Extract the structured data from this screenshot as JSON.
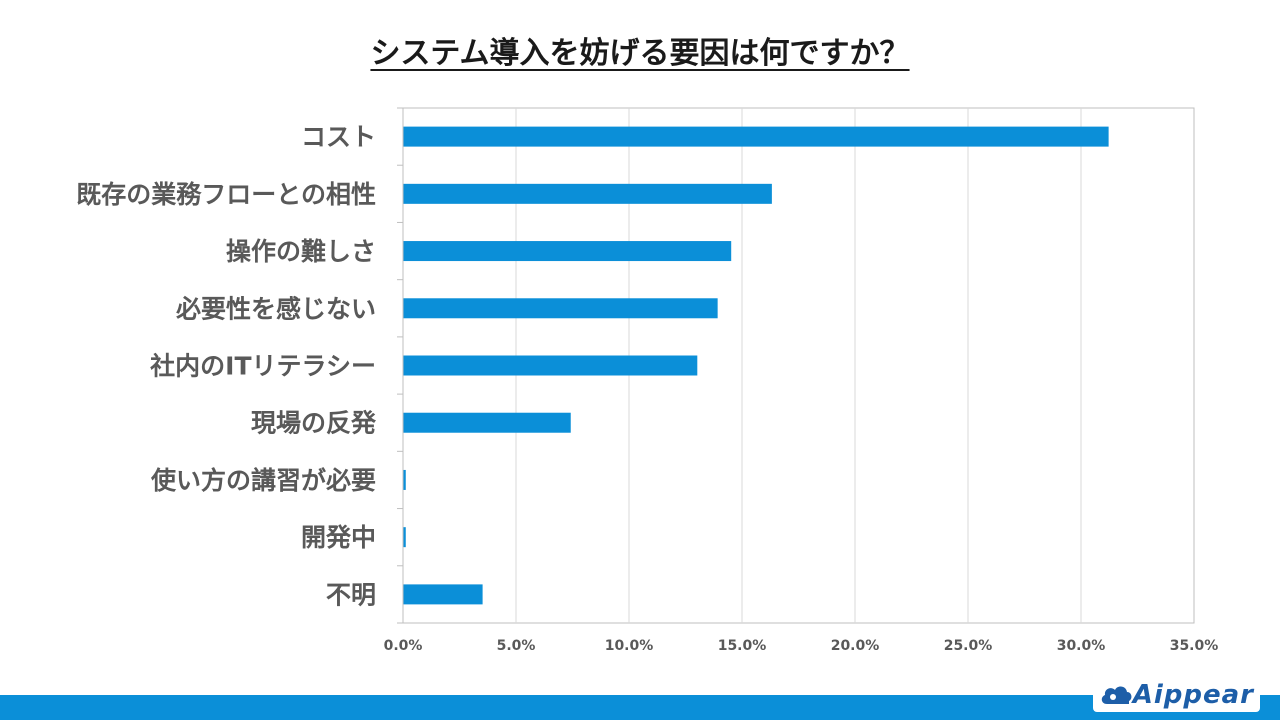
{
  "title": "システム導入を妨げる要因は何ですか？",
  "brand": {
    "name": "Aippear",
    "bar_color": "#0b8fd8",
    "logo_color": "#1d5ea8"
  },
  "chart_data": {
    "type": "bar",
    "orientation": "horizontal",
    "title": "システム導入を妨げる要因は何ですか？",
    "categories": [
      "コスト",
      "既存の業務フローとの相性",
      "操作の難しさ",
      "必要性を感じない",
      "社内のITリテラシー",
      "現場の反発",
      "使い方の講習が必要",
      "開発中",
      "不明"
    ],
    "values": [
      31.2,
      16.3,
      14.5,
      13.9,
      13.0,
      7.4,
      0.1,
      0.1,
      3.5
    ],
    "unit": "%",
    "xlim": [
      0,
      35
    ],
    "xticks": [
      "0.0%",
      "5.0%",
      "10.0%",
      "15.0%",
      "20.0%",
      "25.0%",
      "30.0%",
      "35.0%"
    ],
    "bar_color": "#0b8fd8",
    "grid": true,
    "legend": "none"
  }
}
